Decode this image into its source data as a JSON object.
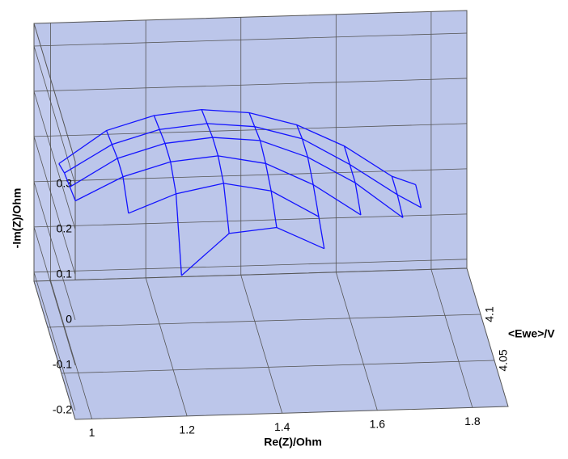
{
  "chart_data": {
    "type": "surface3d",
    "x_label": "Re(Z)/Ohm",
    "y_label": "-Im(Z)/Ohm",
    "z_label": "<Ewe>/V",
    "xlim": [
      0.965,
      1.875
    ],
    "ylim": [
      -0.22,
      0.35
    ],
    "zlim": [
      4.0,
      4.15
    ],
    "xticks": [
      1,
      1.2,
      1.4,
      1.6,
      1.8
    ],
    "yticks": [
      -0.2,
      -0.1,
      0,
      0.1,
      0.2,
      0.3
    ],
    "zticks": [
      4.05,
      4.1
    ],
    "grid": true,
    "color": "#1414ff",
    "x": [
      1.0,
      1.1,
      1.2,
      1.3,
      1.4,
      1.5,
      1.6,
      1.7,
      1.75
    ],
    "series": [
      {
        "z": 4.12,
        "values": [
          0.1,
          0.17,
          0.2,
          0.21,
          0.2,
          0.17,
          0.12,
          0.05,
          0.03
        ]
      },
      {
        "z": 4.1,
        "values": [
          0.12,
          0.18,
          0.21,
          0.22,
          0.21,
          0.18,
          0.12,
          0.05,
          0.02
        ]
      },
      {
        "z": 4.08,
        "values": [
          0.13,
          0.19,
          0.22,
          0.23,
          0.22,
          0.18,
          0.12,
          0.04,
          null
        ]
      },
      {
        "z": 4.06,
        "values": [
          0.14,
          0.19,
          0.22,
          0.23,
          0.21,
          0.16,
          0.09,
          null,
          null
        ]
      },
      {
        "z": 4.04,
        "values": [
          null,
          0.15,
          0.19,
          0.21,
          0.19,
          0.13,
          null,
          null,
          null
        ]
      },
      {
        "z": 4.02,
        "values": [
          null,
          null,
          0.05,
          0.14,
          0.15,
          0.1,
          null,
          null,
          null
        ]
      }
    ]
  }
}
